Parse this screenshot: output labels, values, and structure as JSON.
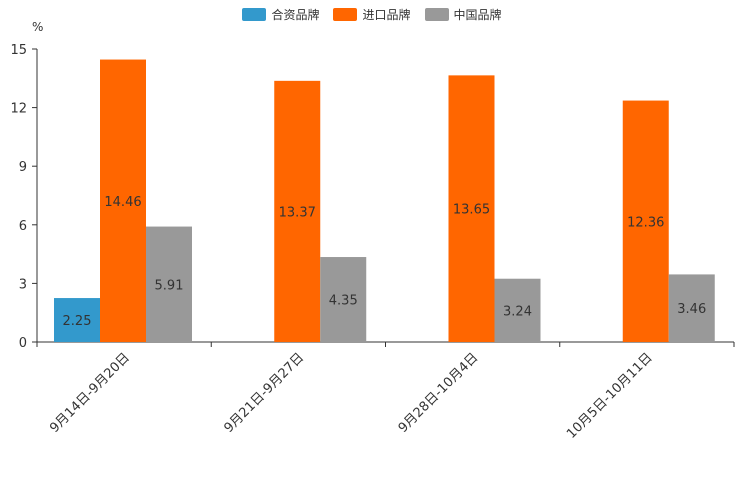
{
  "chart_data": {
    "type": "bar",
    "unit": "%",
    "categories": [
      "9月14日-9月20日",
      "9月21日-9月27日",
      "9月28日-10月4日",
      "10月5日-10月11日"
    ],
    "series": [
      {
        "name": "合资品牌",
        "color": "#3399cc",
        "values": [
          2.25,
          null,
          null,
          null
        ]
      },
      {
        "name": "进口品牌",
        "color": "#ff6600",
        "values": [
          14.46,
          13.37,
          13.65,
          12.36
        ]
      },
      {
        "name": "中国品牌",
        "color": "#999999",
        "values": [
          5.91,
          4.35,
          3.24,
          3.46
        ]
      }
    ],
    "ylim": [
      0,
      15
    ],
    "yticks": [
      0,
      3,
      6,
      9,
      12,
      15
    ],
    "grid": false,
    "legend_position": "top-center"
  }
}
